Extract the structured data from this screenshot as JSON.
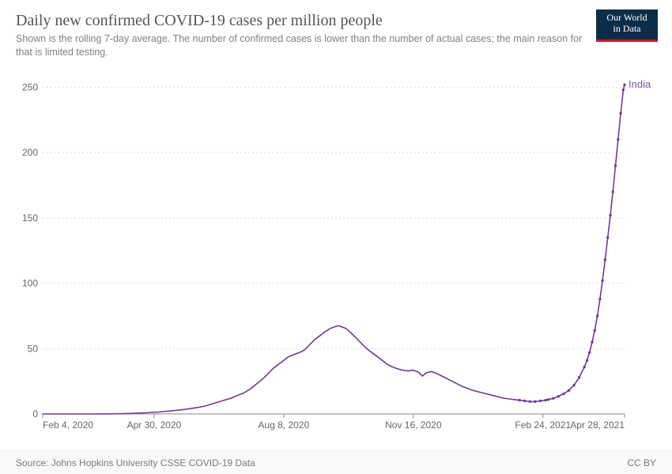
{
  "header": {
    "title": "Daily new confirmed COVID-19 cases per million people",
    "subtitle": "Shown is the rolling 7-day average. The number of confirmed cases is lower than the number of actual cases; the main reason for that is limited testing."
  },
  "logo": {
    "line1": "Our World",
    "line2": "in Data",
    "bg_color": "#0b2d4a",
    "accent_color": "#c1202a",
    "text_color": "#ffffff"
  },
  "footer": {
    "source": "Source: Johns Hopkins University CSSE COVID-19 Data",
    "license": "CC BY"
  },
  "chart": {
    "type": "line",
    "series_label": "India",
    "series_label_color": "#7a5a96",
    "line_color": "#6a3d9a",
    "line_width": 1.6,
    "marker_color": "#6a3d9a",
    "marker_radius": 1.7,
    "background_color": "#ffffff",
    "grid_color": "#dcdcdc",
    "grid_dash": "2,3",
    "axis_color": "#888888",
    "tick_font_size": 12,
    "tick_color": "#666666",
    "ylim": [
      0,
      260
    ],
    "y_ticks": [
      0,
      50,
      100,
      150,
      200,
      250
    ],
    "x_domain_days": [
      0,
      449
    ],
    "x_tick_days": [
      0,
      86,
      186,
      286,
      386,
      449
    ],
    "x_tick_labels": [
      "Feb 4, 2020",
      "Apr 30, 2020",
      "Aug 8, 2020",
      "Nov 16, 2020",
      "Feb 24, 2021",
      "Apr 28, 2021"
    ],
    "data": [
      [
        0,
        0
      ],
      [
        10,
        0
      ],
      [
        20,
        0
      ],
      [
        30,
        0
      ],
      [
        40,
        0
      ],
      [
        50,
        0.05
      ],
      [
        60,
        0.2
      ],
      [
        70,
        0.5
      ],
      [
        80,
        0.9
      ],
      [
        90,
        1.5
      ],
      [
        100,
        2.5
      ],
      [
        110,
        3.5
      ],
      [
        120,
        5
      ],
      [
        125,
        6
      ],
      [
        130,
        7.5
      ],
      [
        135,
        9
      ],
      [
        140,
        10.5
      ],
      [
        145,
        12
      ],
      [
        150,
        14
      ],
      [
        155,
        16
      ],
      [
        160,
        19
      ],
      [
        165,
        23
      ],
      [
        170,
        27
      ],
      [
        175,
        32
      ],
      [
        178,
        35
      ],
      [
        182,
        38
      ],
      [
        186,
        41
      ],
      [
        190,
        44
      ],
      [
        194,
        45.5
      ],
      [
        198,
        47
      ],
      [
        202,
        49
      ],
      [
        206,
        53
      ],
      [
        210,
        57
      ],
      [
        214,
        60
      ],
      [
        218,
        63
      ],
      [
        222,
        65.5
      ],
      [
        226,
        67
      ],
      [
        228,
        67.5
      ],
      [
        230,
        67
      ],
      [
        234,
        65.5
      ],
      [
        238,
        62
      ],
      [
        242,
        58
      ],
      [
        246,
        54
      ],
      [
        250,
        50
      ],
      [
        254,
        47
      ],
      [
        258,
        44
      ],
      [
        262,
        41
      ],
      [
        266,
        38
      ],
      [
        270,
        36
      ],
      [
        274,
        34.5
      ],
      [
        278,
        33.5
      ],
      [
        282,
        33
      ],
      [
        286,
        33.5
      ],
      [
        290,
        32
      ],
      [
        293,
        29
      ],
      [
        296,
        31.5
      ],
      [
        300,
        32.5
      ],
      [
        304,
        31
      ],
      [
        308,
        29
      ],
      [
        312,
        27
      ],
      [
        316,
        25
      ],
      [
        320,
        23
      ],
      [
        324,
        21
      ],
      [
        328,
        19.5
      ],
      [
        332,
        18
      ],
      [
        336,
        17
      ],
      [
        340,
        16
      ],
      [
        344,
        15
      ],
      [
        348,
        14
      ],
      [
        352,
        13
      ],
      [
        356,
        12
      ],
      [
        360,
        11.5
      ],
      [
        364,
        11
      ],
      [
        368,
        10.5
      ],
      [
        372,
        10
      ],
      [
        376,
        9.5
      ],
      [
        380,
        9.5
      ],
      [
        384,
        10
      ],
      [
        388,
        10.5
      ],
      [
        390,
        11
      ],
      [
        394,
        12
      ],
      [
        398,
        13.5
      ],
      [
        402,
        15.5
      ],
      [
        406,
        18
      ],
      [
        410,
        22
      ],
      [
        414,
        28
      ],
      [
        418,
        36
      ],
      [
        420,
        41
      ],
      [
        422,
        47
      ],
      [
        424,
        55
      ],
      [
        426,
        64
      ],
      [
        428,
        75
      ],
      [
        430,
        88
      ],
      [
        432,
        102
      ],
      [
        434,
        118
      ],
      [
        436,
        135
      ],
      [
        438,
        152
      ],
      [
        440,
        170
      ],
      [
        442,
        190
      ],
      [
        444,
        210
      ],
      [
        446,
        230
      ],
      [
        448,
        248
      ],
      [
        449,
        252
      ]
    ]
  }
}
